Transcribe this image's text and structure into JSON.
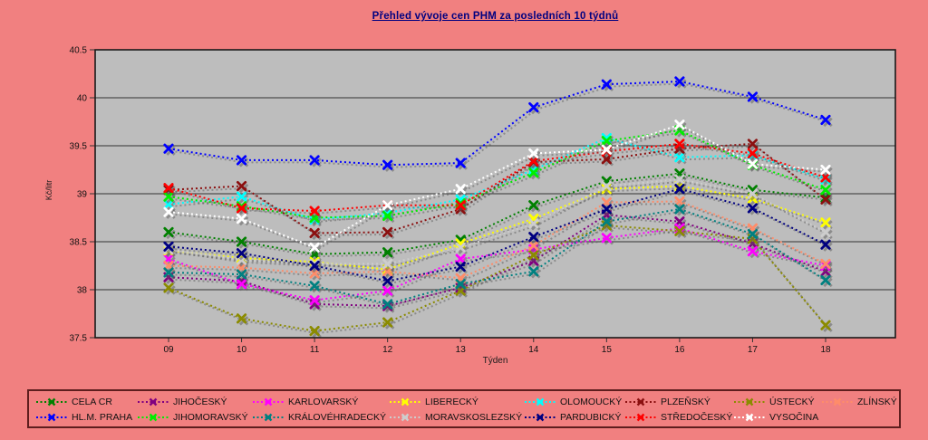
{
  "title": "Přehled vývoje cen PHM za posledních 10 týdnů",
  "chart_data": {
    "type": "line",
    "title": "Přehled vývoje cen PHM za posledních 10 týdnů",
    "xlabel": "Týden",
    "ylabel": "Kč/litr",
    "x": [
      "09",
      "10",
      "11",
      "12",
      "13",
      "14",
      "15",
      "16",
      "17",
      "18"
    ],
    "ylim": [
      37.5,
      40.5
    ],
    "ytick_step": 0.5,
    "grid": true,
    "legend_position": "bottom",
    "marker": "x",
    "line_style": "dotted",
    "colors": {
      "page_bg": "#F18080",
      "plot_bg": "#BDBDBD",
      "grid": "#333333",
      "title": "#000080",
      "text": "#111111",
      "shadow": "#5a5a5a",
      "legend_border": "#5E1E1E"
    },
    "series": [
      {
        "name": "CELA CR",
        "color": "#008000",
        "values": [
          38.6,
          38.5,
          38.37,
          38.39,
          38.52,
          38.88,
          39.13,
          39.21,
          39.04,
          38.96
        ]
      },
      {
        "name": "JIHOČESKÝ",
        "color": "#800080",
        "values": [
          38.13,
          38.09,
          37.85,
          37.83,
          38.02,
          38.3,
          38.78,
          38.71,
          38.48,
          38.19
        ]
      },
      {
        "name": "KARLOVARSKÝ",
        "color": "#FF00FF",
        "values": [
          38.32,
          38.06,
          37.89,
          37.99,
          38.32,
          38.42,
          38.54,
          38.64,
          38.4,
          38.25
        ]
      },
      {
        "name": "LIBERECKÝ",
        "color": "#FFFF00",
        "values": [
          38.41,
          38.33,
          38.29,
          38.21,
          38.48,
          38.74,
          39.05,
          39.08,
          38.95,
          38.7
        ]
      },
      {
        "name": "OLOMOUCKÝ",
        "color": "#00FFFF",
        "values": [
          38.89,
          38.97,
          38.73,
          38.8,
          38.94,
          39.25,
          39.58,
          39.38,
          39.4,
          39.15
        ]
      },
      {
        "name": "PLZEŇSKÝ",
        "color": "#8B1010",
        "values": [
          39.04,
          39.08,
          38.59,
          38.6,
          38.84,
          39.33,
          39.36,
          39.47,
          39.52,
          38.94
        ]
      },
      {
        "name": "ÚSTECKÝ",
        "color": "#8B8B00",
        "values": [
          38.02,
          37.7,
          37.57,
          37.66,
          37.99,
          38.36,
          38.67,
          38.61,
          38.53,
          37.63
        ]
      },
      {
        "name": "ZLÍNSKÝ",
        "color": "#FF8C69",
        "values": [
          38.25,
          38.23,
          38.17,
          38.19,
          38.12,
          38.46,
          38.91,
          38.92,
          38.64,
          38.27
        ]
      },
      {
        "name": "HL.M. PRAHA",
        "color": "#0000FF",
        "values": [
          39.47,
          39.35,
          39.35,
          39.3,
          39.32,
          39.9,
          40.14,
          40.17,
          40.01,
          39.77
        ]
      },
      {
        "name": "JIHOMORAVSKÝ",
        "color": "#00EE00",
        "values": [
          38.97,
          38.87,
          38.75,
          38.77,
          38.9,
          39.22,
          39.55,
          39.66,
          39.3,
          39.04
        ]
      },
      {
        "name": "KRÁLOVÉHRADECKÝ",
        "color": "#008080",
        "values": [
          38.18,
          38.16,
          38.04,
          37.85,
          38.06,
          38.19,
          38.71,
          38.84,
          38.58,
          38.1
        ]
      },
      {
        "name": "MORAVSKOSLEZSKÝ",
        "color": "#CDCDCD",
        "values": [
          38.42,
          38.31,
          38.27,
          38.27,
          38.44,
          38.69,
          39.08,
          39.15,
          39.0,
          38.6
        ]
      },
      {
        "name": "PARDUBICKÝ",
        "color": "#000080",
        "values": [
          38.45,
          38.38,
          38.25,
          38.09,
          38.24,
          38.55,
          38.84,
          39.05,
          38.85,
          38.47
        ]
      },
      {
        "name": "STŘEDOČESKÝ",
        "color": "#FF0000",
        "values": [
          39.06,
          38.85,
          38.82,
          38.88,
          38.88,
          39.34,
          39.44,
          39.52,
          39.42,
          39.17
        ]
      },
      {
        "name": "VYSOČINA",
        "color": "#FFFFFF",
        "values": [
          38.81,
          38.74,
          38.44,
          38.88,
          39.05,
          39.42,
          39.46,
          39.72,
          39.31,
          39.25
        ]
      }
    ]
  }
}
